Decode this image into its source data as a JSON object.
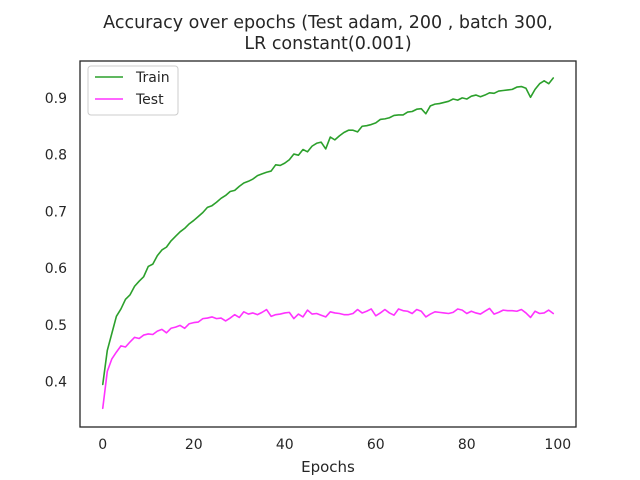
{
  "chart_data": {
    "type": "line",
    "title_lines": [
      "Accuracy over epochs (Test adam, 200 , batch 300,",
      "LR constant(0.001)"
    ],
    "xlabel": "Epochs",
    "ylabel": "",
    "xlim": [
      -5,
      104
    ],
    "ylim": [
      0.32,
      0.965
    ],
    "xticks": [
      0,
      20,
      40,
      60,
      80,
      100
    ],
    "yticks": [
      0.4,
      0.5,
      0.6,
      0.7,
      0.8,
      0.9
    ],
    "grid": false,
    "legend_position": "top-left",
    "x": [
      0,
      1,
      2,
      3,
      4,
      5,
      6,
      7,
      8,
      9,
      10,
      11,
      12,
      13,
      14,
      15,
      16,
      17,
      18,
      19,
      20,
      21,
      22,
      23,
      24,
      25,
      26,
      27,
      28,
      29,
      30,
      31,
      32,
      33,
      34,
      35,
      36,
      37,
      38,
      39,
      40,
      41,
      42,
      43,
      44,
      45,
      46,
      47,
      48,
      49,
      50,
      51,
      52,
      53,
      54,
      55,
      56,
      57,
      58,
      59,
      60,
      61,
      62,
      63,
      64,
      65,
      66,
      67,
      68,
      69,
      70,
      71,
      72,
      73,
      74,
      75,
      76,
      77,
      78,
      79,
      80,
      81,
      82,
      83,
      84,
      85,
      86,
      87,
      88,
      89,
      90,
      91,
      92,
      93,
      94,
      95,
      96,
      97,
      98,
      99
    ],
    "series": [
      {
        "name": "Train",
        "color": "#2ca02c",
        "values": [
          0.395,
          0.455,
          0.485,
          0.515,
          0.528,
          0.545,
          0.553,
          0.568,
          0.577,
          0.585,
          0.603,
          0.607,
          0.622,
          0.632,
          0.637,
          0.648,
          0.656,
          0.664,
          0.67,
          0.678,
          0.684,
          0.691,
          0.698,
          0.707,
          0.71,
          0.716,
          0.723,
          0.728,
          0.735,
          0.737,
          0.744,
          0.75,
          0.753,
          0.757,
          0.763,
          0.766,
          0.769,
          0.771,
          0.782,
          0.781,
          0.785,
          0.791,
          0.801,
          0.799,
          0.809,
          0.805,
          0.815,
          0.82,
          0.822,
          0.81,
          0.831,
          0.826,
          0.833,
          0.839,
          0.843,
          0.843,
          0.84,
          0.85,
          0.851,
          0.853,
          0.856,
          0.862,
          0.863,
          0.865,
          0.869,
          0.87,
          0.87,
          0.875,
          0.876,
          0.88,
          0.881,
          0.872,
          0.886,
          0.889,
          0.89,
          0.892,
          0.894,
          0.898,
          0.896,
          0.9,
          0.898,
          0.903,
          0.905,
          0.902,
          0.905,
          0.909,
          0.908,
          0.912,
          0.913,
          0.914,
          0.915,
          0.919,
          0.92,
          0.917,
          0.901,
          0.915,
          0.925,
          0.93,
          0.925,
          0.935
        ]
      },
      {
        "name": "Test",
        "color": "#ff33ff",
        "values": [
          0.353,
          0.418,
          0.44,
          0.452,
          0.463,
          0.461,
          0.47,
          0.478,
          0.476,
          0.482,
          0.484,
          0.483,
          0.489,
          0.492,
          0.486,
          0.494,
          0.496,
          0.499,
          0.494,
          0.502,
          0.504,
          0.505,
          0.511,
          0.512,
          0.514,
          0.511,
          0.512,
          0.507,
          0.512,
          0.518,
          0.513,
          0.523,
          0.519,
          0.521,
          0.518,
          0.522,
          0.527,
          0.515,
          0.518,
          0.519,
          0.521,
          0.522,
          0.511,
          0.519,
          0.514,
          0.526,
          0.519,
          0.52,
          0.517,
          0.514,
          0.523,
          0.521,
          0.52,
          0.518,
          0.518,
          0.52,
          0.527,
          0.521,
          0.524,
          0.528,
          0.516,
          0.521,
          0.527,
          0.521,
          0.517,
          0.528,
          0.525,
          0.524,
          0.52,
          0.527,
          0.524,
          0.514,
          0.519,
          0.523,
          0.522,
          0.521,
          0.52,
          0.522,
          0.528,
          0.526,
          0.52,
          0.524,
          0.521,
          0.519,
          0.524,
          0.529,
          0.519,
          0.522,
          0.526,
          0.525,
          0.525,
          0.524,
          0.527,
          0.521,
          0.513,
          0.524,
          0.52,
          0.521,
          0.526,
          0.52
        ]
      }
    ]
  }
}
